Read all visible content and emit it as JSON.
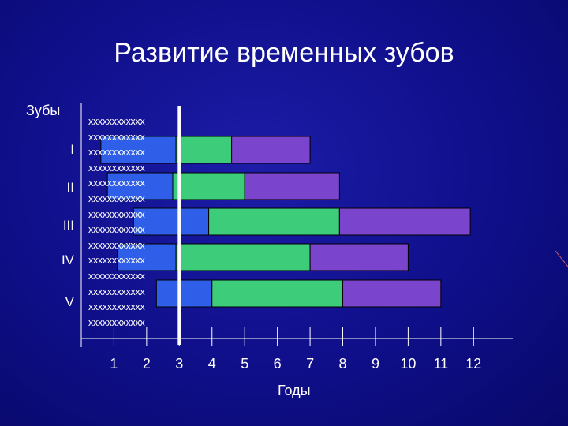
{
  "title": "Развитие временных зубов",
  "chart_data": {
    "type": "bar",
    "stacked": true,
    "orientation": "horizontal",
    "ylabel": "Зубы",
    "xlabel": "Годы",
    "categories": [
      "I",
      "II",
      "III",
      "IV",
      "V"
    ],
    "x_ticks": [
      "1",
      "2",
      "3",
      "4",
      "5",
      "6",
      "7",
      "8",
      "9",
      "10",
      "11",
      "12"
    ],
    "xlim": [
      0,
      13.2
    ],
    "marker_x": 3,
    "mask_text": "xxxxxxxxxxxx",
    "mask_rows": 14,
    "series": [
      {
        "color": "#2f5fe8",
        "starts": [
          0.6,
          0.8,
          1.6,
          1.1,
          2.3
        ],
        "ends": [
          2.9,
          2.8,
          3.9,
          2.9,
          4.0
        ]
      },
      {
        "color": "#3ccc7a",
        "starts": [
          2.9,
          2.8,
          3.9,
          2.9,
          4.0
        ],
        "ends": [
          4.6,
          5.0,
          7.9,
          7.0,
          8.0
        ]
      },
      {
        "color": "#7a44cc",
        "starts": [
          4.6,
          5.0,
          7.9,
          7.0,
          8.0
        ],
        "ends": [
          7.0,
          7.9,
          11.9,
          10.0,
          11.0
        ]
      }
    ]
  }
}
